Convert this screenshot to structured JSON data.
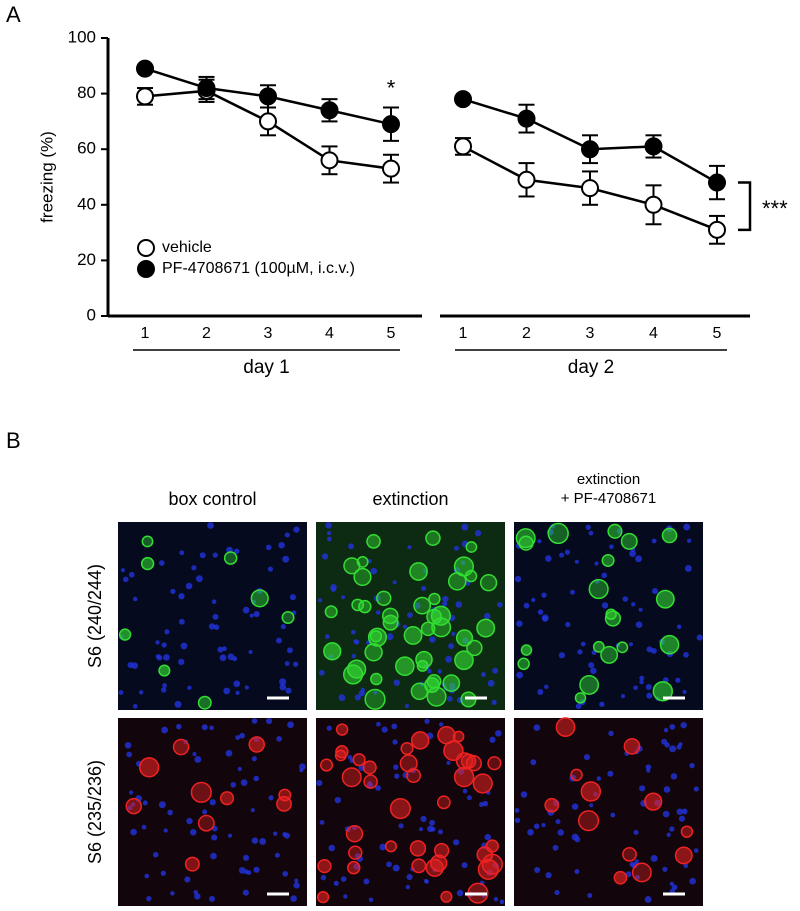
{
  "panel_labels": [
    "A",
    "B"
  ],
  "chart_data": [
    {
      "type": "line",
      "y_label": "freezing (%)",
      "x_label": "day 1",
      "categories": [
        "1",
        "2",
        "3",
        "4",
        "5"
      ],
      "ylim": [
        0,
        100
      ],
      "yticks": [
        0,
        20,
        40,
        60,
        80,
        100
      ],
      "grid": false,
      "legend": "lower left",
      "annotation": "*",
      "series": [
        {
          "name": "vehicle",
          "color": "#ffffff",
          "values": [
            79,
            81,
            70,
            56,
            53
          ],
          "errors": [
            3,
            4,
            5,
            5,
            5
          ]
        },
        {
          "name": "PF-4708671 (100µM, i.c.v.)",
          "color": "#000000",
          "values": [
            89,
            82,
            79,
            74,
            69
          ],
          "errors": [
            1,
            4,
            4,
            4,
            6
          ]
        }
      ]
    },
    {
      "type": "line",
      "x_label": "day 2",
      "categories": [
        "1",
        "2",
        "3",
        "4",
        "5"
      ],
      "ylim": [
        0,
        100
      ],
      "grid": false,
      "annotation": "***",
      "series": [
        {
          "name": "vehicle",
          "color": "#ffffff",
          "values": [
            61,
            49,
            46,
            40,
            31
          ],
          "errors": [
            3,
            6,
            6,
            7,
            5
          ]
        },
        {
          "name": "PF-4708671 (100µM, i.c.v.)",
          "color": "#000000",
          "values": [
            78,
            71,
            60,
            61,
            48
          ],
          "errors": [
            1,
            5,
            5,
            4,
            6
          ]
        }
      ]
    }
  ],
  "panel_b": {
    "columns": [
      [
        "box control"
      ],
      [
        "extinction"
      ],
      [
        "extinction",
        "+ PF-4708671"
      ]
    ],
    "rows": [
      "S6 (240/244)",
      "S6 (235/236)"
    ]
  }
}
